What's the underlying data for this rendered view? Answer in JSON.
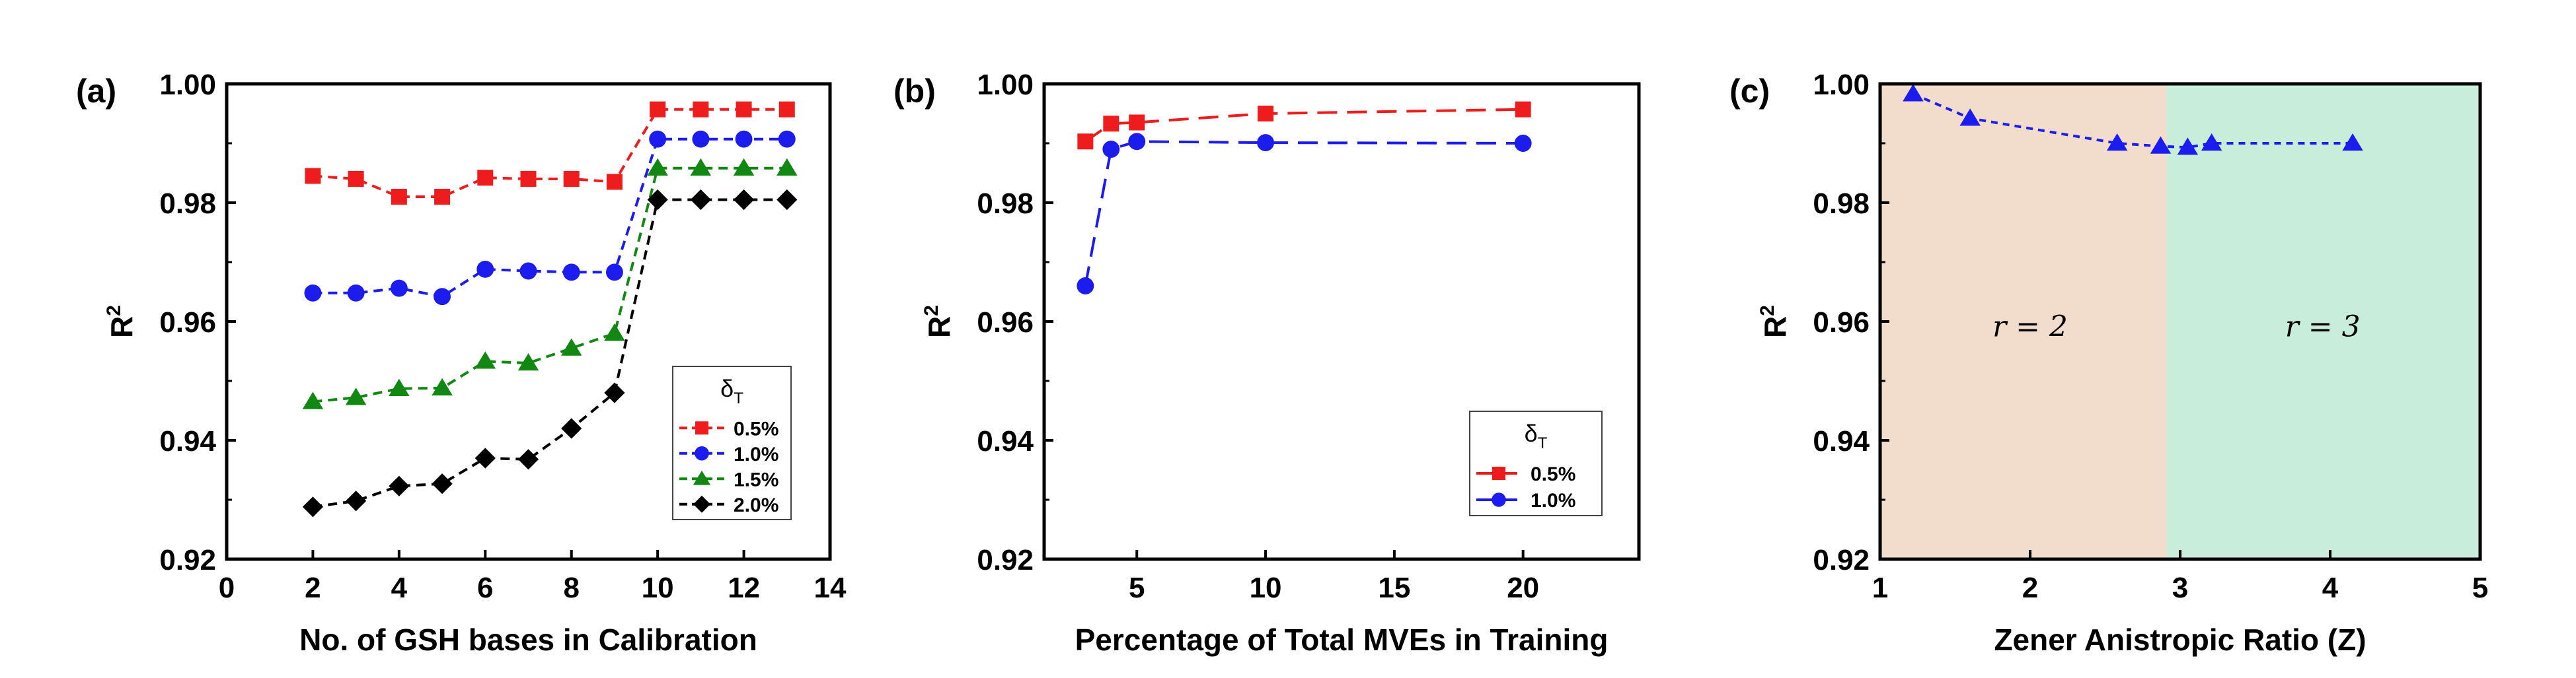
{
  "chart_data": [
    {
      "type": "line",
      "panel_label": "(a)",
      "xlabel": "No. of GSH bases in Calibration",
      "ylabel": "R",
      "ylabel_sup": "2",
      "xlim": [
        0,
        14
      ],
      "ylim": [
        0.92,
        1.0
      ],
      "xticks": [
        0,
        2,
        4,
        6,
        8,
        10,
        12,
        14
      ],
      "yticks": [
        0.92,
        0.94,
        0.96,
        0.98,
        1.0
      ],
      "xtick_labels": [
        "0",
        "2",
        "4",
        "6",
        "8",
        "10",
        "12",
        "14"
      ],
      "ytick_labels": [
        "0.92",
        "0.94",
        "0.96",
        "0.98",
        "1.00"
      ],
      "legend": {
        "title_main": "δ",
        "title_sub": "T",
        "position": "lower-right"
      },
      "series": [
        {
          "name": "0.5%",
          "color": "#ee1c1c",
          "marker": "square",
          "x": [
            2,
            3,
            4,
            5,
            6,
            7,
            8,
            9,
            10,
            11,
            12,
            13
          ],
          "y": [
            0.9845,
            0.984,
            0.981,
            0.981,
            0.9842,
            0.984,
            0.984,
            0.9835,
            0.9957,
            0.9957,
            0.9957,
            0.9957
          ]
        },
        {
          "name": "1.0%",
          "color": "#1c1cee",
          "marker": "circle",
          "x": [
            2,
            3,
            4,
            5,
            6,
            7,
            8,
            9,
            10,
            11,
            12,
            13
          ],
          "y": [
            0.9648,
            0.9648,
            0.9656,
            0.9642,
            0.9688,
            0.9685,
            0.9683,
            0.9683,
            0.9907,
            0.9907,
            0.9907,
            0.9907
          ]
        },
        {
          "name": "1.5%",
          "color": "#118811",
          "marker": "triangle",
          "x": [
            2,
            3,
            4,
            5,
            6,
            7,
            8,
            9,
            10,
            11,
            12,
            13
          ],
          "y": [
            0.9465,
            0.9472,
            0.9487,
            0.9488,
            0.9533,
            0.953,
            0.9555,
            0.958,
            0.9858,
            0.9858,
            0.9858,
            0.9858
          ]
        },
        {
          "name": "2.0%",
          "color": "#000000",
          "marker": "diamond",
          "x": [
            2,
            3,
            4,
            5,
            6,
            7,
            8,
            9,
            10,
            11,
            12,
            13
          ],
          "y": [
            0.9288,
            0.9298,
            0.9323,
            0.9327,
            0.937,
            0.9368,
            0.942,
            0.948,
            0.9805,
            0.9805,
            0.9805,
            0.9805
          ]
        }
      ]
    },
    {
      "type": "line",
      "panel_label": "(b)",
      "xlabel": "Percentage of Total MVEs in Training",
      "ylabel": "R",
      "ylabel_sup": "2",
      "xlim": [
        1.4,
        24.5
      ],
      "ylim": [
        0.92,
        1.0
      ],
      "xticks": [
        5,
        10,
        15,
        20
      ],
      "yticks": [
        0.92,
        0.94,
        0.96,
        0.98,
        1.0
      ],
      "xtick_labels": [
        "5",
        "10",
        "15",
        "20"
      ],
      "ytick_labels": [
        "0.92",
        "0.94",
        "0.96",
        "0.98",
        "1.00"
      ],
      "legend": {
        "title_main": "δ",
        "title_sub": "T",
        "position": "lower-right"
      },
      "series": [
        {
          "name": "0.5%",
          "color": "#ee1c1c",
          "marker": "square",
          "x": [
            3,
            4,
            5,
            10,
            20
          ],
          "y": [
            0.9903,
            0.9933,
            0.9935,
            0.995,
            0.9957
          ]
        },
        {
          "name": "1.0%",
          "color": "#1c1cee",
          "marker": "circle",
          "x": [
            3,
            4,
            5,
            10,
            20
          ],
          "y": [
            0.966,
            0.989,
            0.9903,
            0.9901,
            0.99
          ]
        }
      ]
    },
    {
      "type": "line",
      "panel_label": "(c)",
      "xlabel": "Zener Anistropic Ratio (Z)",
      "ylabel": "R",
      "ylabel_sup": "2",
      "xlim": [
        1,
        5
      ],
      "ylim": [
        0.92,
        1.0
      ],
      "xticks": [
        1,
        2,
        3,
        4,
        5
      ],
      "yticks": [
        0.92,
        0.94,
        0.96,
        0.98,
        1.0
      ],
      "xtick_labels": [
        "1",
        "2",
        "3",
        "4",
        "5"
      ],
      "ytick_labels": [
        "0.92",
        "0.94",
        "0.96",
        "0.98",
        "1.00"
      ],
      "regions": [
        {
          "x_from": 1,
          "x_to": 2.91,
          "color": "#f2dccb",
          "label": "r = 2",
          "label_x": 2.0,
          "label_y": 0.9575
        },
        {
          "x_from": 2.91,
          "x_to": 5,
          "color": "#c8eedb",
          "label": "r = 3",
          "label_x": 3.95,
          "label_y": 0.9575
        }
      ],
      "series": [
        {
          "name": "",
          "color": "#1c1cee",
          "marker": "triangle",
          "x": [
            1.22,
            1.6,
            2.58,
            2.87,
            3.05,
            3.21,
            4.15
          ],
          "y": [
            0.9983,
            0.9942,
            0.99,
            0.9895,
            0.9893,
            0.99,
            0.99
          ]
        }
      ]
    }
  ]
}
